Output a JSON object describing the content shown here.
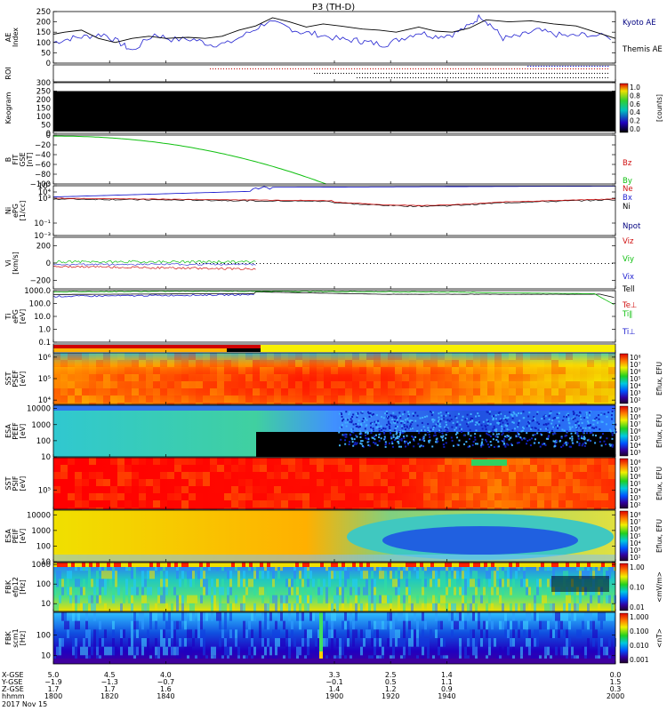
{
  "title": "P3 (TH-D)",
  "colors": {
    "blue": "#2020d0",
    "red": "#d01010",
    "green": "#10c010",
    "black": "#000000",
    "navy": "#000080"
  },
  "chart_data": {
    "type": "line",
    "x": [
      1800,
      1820,
      1840,
      1900,
      1920,
      1940,
      2000
    ],
    "xlim": [
      1800,
      2000
    ],
    "panels": [
      {
        "id": "ae",
        "ylabel": "AE Index",
        "ylim": [
          0,
          250
        ],
        "ticks": [
          "250",
          "200",
          "150",
          "100",
          "50",
          "0"
        ],
        "tickvals": [
          250,
          200,
          150,
          100,
          50,
          0
        ],
        "legend": [
          {
            "text": "Kyoto AE",
            "color": "#000080"
          },
          {
            "text": "Themis AE",
            "color": "#000000"
          }
        ]
      },
      {
        "id": "roi",
        "ylabel": "ROI",
        "ticks": [],
        "tickvals": [],
        "legend": []
      },
      {
        "id": "keogram",
        "ylabel": "Keogram",
        "ylim": [
          0,
          300
        ],
        "ticks": [
          "300",
          "250",
          "200",
          "150",
          "100",
          "50",
          "0"
        ],
        "tickvals": [
          300,
          250,
          200,
          150,
          100,
          50,
          0
        ],
        "legend": [],
        "colorbar": {
          "label": "[counts]",
          "ticks": [
            "1.0",
            "0.8",
            "0.6",
            "0.4",
            "0.2",
            "0.0"
          ],
          "kind": "linear"
        }
      },
      {
        "id": "bfit",
        "ylabel": "B FIT GSE [nT]",
        "ylim": [
          -100,
          0
        ],
        "ticks": [
          "0",
          "−20",
          "−40",
          "−60",
          "−80",
          "−100"
        ],
        "tickvals": [
          0,
          -20,
          -40,
          -60,
          -80,
          -100
        ],
        "legend": [
          {
            "text": "Bz",
            "color": "#d01010"
          },
          {
            "text": "By",
            "color": "#10c010"
          },
          {
            "text": "Bx",
            "color": "#2020d0"
          }
        ]
      },
      {
        "id": "ni",
        "ylabel": "Ni ePG [1/cc]",
        "ylim": [
          -3,
          5
        ],
        "ticks": [
          "10⁵",
          "10⁴",
          "10³",
          "10⁻¹",
          "10⁻³"
        ],
        "tickvals": [
          5,
          4,
          3,
          -1,
          -3
        ],
        "legend": [
          {
            "text": "Ne",
            "color": "#d01010"
          },
          {
            "text": "Ni",
            "color": "#000000"
          },
          {
            "text": "Npot",
            "color": "#000080"
          }
        ]
      },
      {
        "id": "vi",
        "ylabel": "Vi [km/s]",
        "ylim": [
          -300,
          300
        ],
        "ticks": [
          "200",
          "0",
          "−200"
        ],
        "tickvals": [
          200,
          0,
          -200
        ],
        "legend": [
          {
            "text": "Viz",
            "color": "#d01010"
          },
          {
            "text": "Viy",
            "color": "#10c010"
          },
          {
            "text": "Vix",
            "color": "#2020d0"
          }
        ]
      },
      {
        "id": "ti",
        "ylabel": "Ti ePG [eV]",
        "ylim": [
          -1,
          3
        ],
        "ticks": [
          "1000.0",
          "100.0",
          "10.0",
          "1.0",
          "0.1"
        ],
        "tickvals": [
          3,
          2,
          1,
          0,
          -1
        ],
        "legend": [
          {
            "text": "Tell",
            "color": "#000000"
          },
          {
            "text": "Te⊥",
            "color": "#d01010"
          },
          {
            "text": "Ti∥",
            "color": "#10c010"
          },
          {
            "text": "Ti⊥",
            "color": "#2020d0"
          }
        ]
      },
      {
        "id": "mode",
        "ylabel": "",
        "ticks": [],
        "tickvals": [],
        "legend": []
      },
      {
        "id": "sst_e",
        "ylabel": "SST PSEF [eV]",
        "ylim": [
          3.8,
          6.2
        ],
        "ticks": [
          "10⁶",
          "10⁵",
          "10⁴"
        ],
        "tickvals": [
          6,
          5,
          4
        ],
        "legend": [],
        "colorbar": {
          "label": "Eflux, EFU",
          "ticks": [
            "10⁸",
            "10⁷",
            "10⁶",
            "10⁵",
            "10⁴",
            "10³",
            "10²"
          ],
          "kind": "exp"
        }
      },
      {
        "id": "esa_e",
        "ylabel": "ESA PEEF [eV]",
        "ylim": [
          1,
          4.2
        ],
        "ticks": [
          "10000",
          "1000",
          "100",
          "10"
        ],
        "tickvals": [
          4,
          3,
          2,
          1
        ],
        "legend": [],
        "colorbar": {
          "label": "Eflux, EFU",
          "ticks": [
            "10⁹",
            "10⁸",
            "10⁷",
            "10⁶",
            "10⁵",
            "10⁴",
            "10³"
          ],
          "kind": "exp"
        }
      },
      {
        "id": "sst_i",
        "ylabel": "SST PSIF [eV]",
        "ylim": [
          4.3,
          6.2
        ],
        "ticks": [
          "10⁵"
        ],
        "tickvals": [
          5
        ],
        "legend": [],
        "colorbar": {
          "label": "Eflux, EFU",
          "ticks": [
            "10⁸",
            "10⁷",
            "10⁶",
            "10⁵",
            "10⁴",
            "10³",
            "10²"
          ],
          "kind": "exp"
        }
      },
      {
        "id": "esa_i",
        "ylabel": "ESA PEIF [eV]",
        "ylim": [
          1,
          4.3
        ],
        "ticks": [
          "10000",
          "1000",
          "100",
          "10"
        ],
        "tickvals": [
          4,
          3,
          2,
          1
        ],
        "legend": [],
        "colorbar": {
          "label": "Eflux, EFU",
          "ticks": [
            "10⁸",
            "10⁷",
            "10⁶",
            "10⁵",
            "10⁴",
            "10³",
            "10²"
          ],
          "kind": "exp"
        }
      },
      {
        "id": "fbk_e",
        "ylabel": "FBK efp12 [Hz]",
        "ylim": [
          0.6,
          3.1
        ],
        "ticks": [
          "1000",
          "100",
          "10"
        ],
        "tickvals": [
          3,
          2,
          1
        ],
        "legend": [],
        "colorbar": {
          "label": "<mV/m>",
          "ticks": [
            "1.00",
            "0.10",
            "0.01"
          ],
          "kind": "linear"
        }
      },
      {
        "id": "fbk_b",
        "ylabel": "FBK scm1 [Hz]",
        "ylim": [
          0.6,
          3.1
        ],
        "ticks": [
          "100",
          "10"
        ],
        "tickvals": [
          2,
          1
        ],
        "legend": [],
        "colorbar": {
          "label": "<nT>",
          "ticks": [
            "1.000",
            "0.100",
            "0.010",
            "0.001"
          ],
          "kind": "linear"
        }
      }
    ],
    "xaxis_rows": [
      {
        "label": "X-GSE",
        "values": [
          "5.0",
          "4.5",
          "4.0",
          "3.3",
          "2.5",
          "1.4",
          "0.0"
        ]
      },
      {
        "label": "Y-GSE",
        "values": [
          "−1.9",
          "−1.3",
          "−0.7",
          "−0.1",
          "0.5",
          "1.1",
          "1.5"
        ]
      },
      {
        "label": "Z-GSE",
        "values": [
          "1.7",
          "1.7",
          "1.6",
          "1.4",
          "1.2",
          "0.9",
          "0.3"
        ]
      },
      {
        "label": "hhmm",
        "values": [
          "1800",
          "1820",
          "1840",
          "1900",
          "1920",
          "1940",
          "2000"
        ]
      }
    ],
    "date": "2017 Nov 15"
  }
}
